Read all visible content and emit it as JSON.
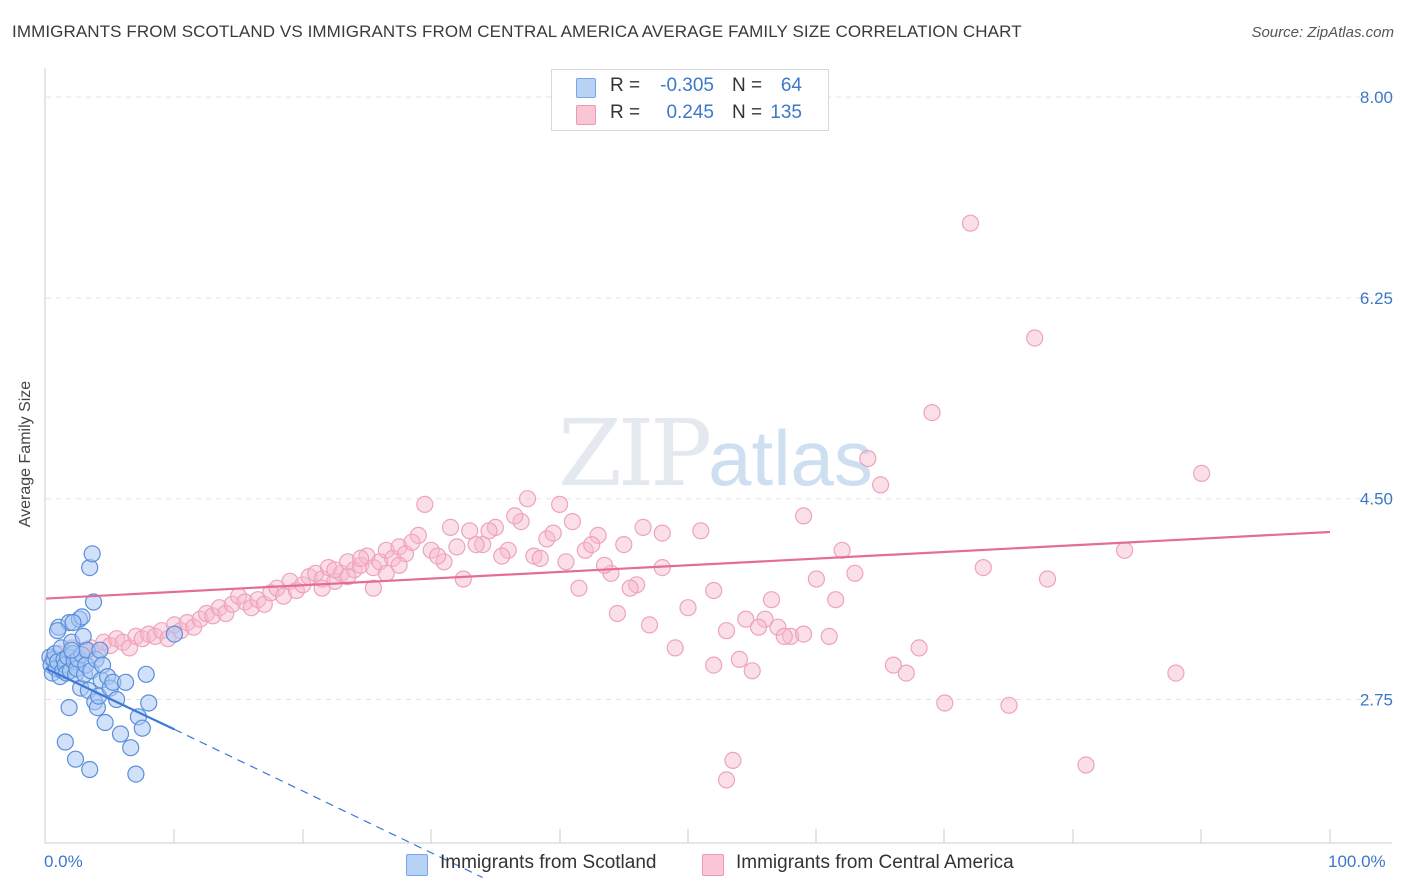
{
  "header": {
    "title": "IMMIGRANTS FROM SCOTLAND VS IMMIGRANTS FROM CENTRAL AMERICA AVERAGE FAMILY SIZE CORRELATION CHART",
    "source": "Source: ZipAtlas.com"
  },
  "watermark": {
    "zip": "ZIP",
    "atlas": "atlas"
  },
  "legend": {
    "rows": [
      {
        "r_label": "R =",
        "r_value": "-0.305",
        "n_label": "N =",
        "n_value": "64",
        "color": "#a9c9f4"
      },
      {
        "r_label": "R =",
        "r_value": "0.245",
        "n_label": "N =",
        "n_value": "135",
        "color": "#f7b9cc"
      }
    ]
  },
  "chart_data": {
    "type": "scatter",
    "title": "IMMIGRANTS FROM SCOTLAND VS IMMIGRANTS FROM CENTRAL AMERICA AVERAGE FAMILY SIZE CORRELATION CHART",
    "xlabel": "",
    "ylabel": "Average Family Size",
    "xlim": [
      0,
      100
    ],
    "ylim": [
      1.5,
      8.2
    ],
    "x_tick_labels": [
      "0.0%",
      "100.0%"
    ],
    "y_ticks": [
      2.75,
      4.5,
      6.25,
      8.0
    ],
    "y_tick_labels": [
      "2.75",
      "4.50",
      "6.25",
      "8.00"
    ],
    "series": [
      {
        "name": "Immigrants from Scotland",
        "color": "#3c78d8",
        "fill": "#a9c9f4",
        "trend": {
          "x0": 0,
          "y0": 3.02,
          "x1": 10,
          "y1": 2.49,
          "dash_to_x": 34,
          "dash_to_y": 1.2
        },
        "points": [
          [
            0.3,
            3.12
          ],
          [
            0.4,
            3.05
          ],
          [
            0.5,
            2.98
          ],
          [
            0.6,
            3.1
          ],
          [
            0.7,
            3.15
          ],
          [
            0.8,
            3.02
          ],
          [
            0.9,
            3.08
          ],
          [
            1.0,
            3.38
          ],
          [
            1.1,
            2.95
          ],
          [
            1.2,
            3.2
          ],
          [
            1.3,
            3.0
          ],
          [
            1.4,
            3.1
          ],
          [
            1.5,
            3.05
          ],
          [
            1.6,
            2.98
          ],
          [
            1.7,
            3.12
          ],
          [
            1.8,
            3.42
          ],
          [
            1.9,
            3.0
          ],
          [
            2.0,
            3.25
          ],
          [
            2.1,
            3.15
          ],
          [
            2.2,
            3.08
          ],
          [
            2.3,
            2.97
          ],
          [
            2.4,
            3.02
          ],
          [
            2.5,
            3.1
          ],
          [
            2.6,
            3.45
          ],
          [
            2.7,
            2.85
          ],
          [
            2.8,
            3.14
          ],
          [
            2.9,
            3.3
          ],
          [
            3.0,
            2.97
          ],
          [
            3.1,
            3.05
          ],
          [
            3.2,
            3.18
          ],
          [
            3.3,
            2.83
          ],
          [
            3.4,
            3.9
          ],
          [
            3.5,
            3.0
          ],
          [
            3.6,
            4.02
          ],
          [
            3.7,
            3.6
          ],
          [
            3.8,
            2.73
          ],
          [
            3.9,
            3.1
          ],
          [
            4.0,
            2.68
          ],
          [
            4.1,
            2.78
          ],
          [
            4.2,
            3.18
          ],
          [
            4.3,
            2.92
          ],
          [
            4.4,
            3.05
          ],
          [
            4.6,
            2.55
          ],
          [
            4.8,
            2.95
          ],
          [
            5.0,
            2.85
          ],
          [
            5.2,
            2.9
          ],
          [
            5.5,
            2.75
          ],
          [
            5.8,
            2.45
          ],
          [
            6.2,
            2.9
          ],
          [
            6.6,
            2.33
          ],
          [
            7.0,
            2.1
          ],
          [
            7.2,
            2.6
          ],
          [
            7.5,
            2.5
          ],
          [
            7.8,
            2.97
          ],
          [
            8.0,
            2.72
          ],
          [
            1.5,
            2.38
          ],
          [
            2.3,
            2.23
          ],
          [
            3.4,
            2.14
          ],
          [
            1.8,
            2.68
          ],
          [
            2.8,
            3.47
          ],
          [
            0.9,
            3.35
          ],
          [
            2.0,
            3.18
          ],
          [
            10.0,
            3.32
          ],
          [
            2.1,
            3.42
          ]
        ]
      },
      {
        "name": "Immigrants from Central America",
        "color": "#e36d97",
        "fill": "#f7b9cc",
        "trend": {
          "x0": 0,
          "y0": 3.63,
          "x1": 100,
          "y1": 4.21
        },
        "points": [
          [
            0.5,
            3.1
          ],
          [
            1.0,
            3.15
          ],
          [
            1.5,
            3.05
          ],
          [
            2.0,
            3.2
          ],
          [
            2.5,
            3.12
          ],
          [
            3.0,
            3.18
          ],
          [
            3.5,
            3.2
          ],
          [
            4.0,
            3.15
          ],
          [
            4.5,
            3.25
          ],
          [
            5.0,
            3.22
          ],
          [
            5.5,
            3.28
          ],
          [
            6.0,
            3.25
          ],
          [
            6.5,
            3.2
          ],
          [
            7.0,
            3.3
          ],
          [
            7.5,
            3.28
          ],
          [
            8.0,
            3.32
          ],
          [
            8.5,
            3.3
          ],
          [
            9.0,
            3.35
          ],
          [
            9.5,
            3.28
          ],
          [
            10.0,
            3.4
          ],
          [
            10.5,
            3.35
          ],
          [
            11.0,
            3.42
          ],
          [
            11.5,
            3.38
          ],
          [
            12.0,
            3.45
          ],
          [
            12.5,
            3.5
          ],
          [
            13.0,
            3.48
          ],
          [
            13.5,
            3.55
          ],
          [
            14.0,
            3.5
          ],
          [
            14.5,
            3.58
          ],
          [
            15.0,
            3.65
          ],
          [
            15.5,
            3.6
          ],
          [
            16.0,
            3.55
          ],
          [
            16.5,
            3.62
          ],
          [
            17.0,
            3.58
          ],
          [
            17.5,
            3.68
          ],
          [
            18.0,
            3.72
          ],
          [
            18.5,
            3.65
          ],
          [
            19.0,
            3.78
          ],
          [
            19.5,
            3.7
          ],
          [
            20.0,
            3.75
          ],
          [
            20.5,
            3.82
          ],
          [
            21.0,
            3.85
          ],
          [
            21.5,
            3.8
          ],
          [
            22.0,
            3.9
          ],
          [
            22.5,
            3.78
          ],
          [
            23.0,
            3.85
          ],
          [
            23.5,
            3.95
          ],
          [
            24.0,
            3.88
          ],
          [
            24.5,
            3.92
          ],
          [
            25.0,
            4.0
          ],
          [
            25.5,
            3.9
          ],
          [
            26.0,
            3.95
          ],
          [
            26.5,
            4.05
          ],
          [
            27.0,
            3.98
          ],
          [
            27.5,
            4.08
          ],
          [
            28.0,
            4.02
          ],
          [
            29.0,
            4.18
          ],
          [
            30.0,
            4.05
          ],
          [
            31.0,
            3.95
          ],
          [
            32.0,
            4.08
          ],
          [
            33.0,
            4.22
          ],
          [
            34.0,
            4.1
          ],
          [
            35.0,
            4.25
          ],
          [
            36.0,
            4.05
          ],
          [
            37.0,
            4.3
          ],
          [
            38.0,
            4.0
          ],
          [
            39.0,
            4.15
          ],
          [
            40.0,
            4.45
          ],
          [
            41.0,
            4.3
          ],
          [
            42.0,
            4.05
          ],
          [
            43.0,
            4.18
          ],
          [
            44.0,
            3.85
          ],
          [
            45.0,
            4.1
          ],
          [
            46.0,
            3.75
          ],
          [
            47.0,
            3.4
          ],
          [
            48.0,
            4.2
          ],
          [
            49.0,
            3.2
          ],
          [
            50.0,
            3.55
          ],
          [
            51.0,
            4.22
          ],
          [
            52.0,
            3.7
          ],
          [
            53.0,
            3.35
          ],
          [
            54.0,
            3.1
          ],
          [
            55.0,
            3.0
          ],
          [
            56.0,
            3.45
          ],
          [
            57.0,
            3.38
          ],
          [
            58.0,
            3.3
          ],
          [
            59.0,
            4.35
          ],
          [
            60.0,
            3.8
          ],
          [
            61.0,
            3.3
          ],
          [
            62.0,
            4.05
          ],
          [
            63.0,
            3.85
          ],
          [
            64.0,
            4.85
          ],
          [
            65.0,
            4.62
          ],
          [
            66.0,
            3.05
          ],
          [
            67.0,
            2.98
          ],
          [
            68.0,
            3.2
          ],
          [
            69.0,
            5.25
          ],
          [
            70.0,
            2.72
          ],
          [
            72.0,
            6.9
          ],
          [
            73.0,
            3.9
          ],
          [
            75.0,
            2.7
          ],
          [
            77.0,
            5.9
          ],
          [
            78.0,
            3.8
          ],
          [
            81.0,
            2.18
          ],
          [
            84.0,
            4.05
          ],
          [
            88.0,
            2.98
          ],
          [
            90.0,
            4.72
          ],
          [
            53.5,
            2.22
          ],
          [
            54.5,
            3.45
          ],
          [
            55.5,
            3.38
          ],
          [
            56.5,
            3.62
          ],
          [
            57.5,
            3.3
          ],
          [
            52.0,
            3.05
          ],
          [
            48.0,
            3.9
          ],
          [
            46.5,
            4.25
          ],
          [
            45.5,
            3.72
          ],
          [
            44.5,
            3.5
          ],
          [
            43.5,
            3.92
          ],
          [
            42.5,
            4.1
          ],
          [
            41.5,
            3.72
          ],
          [
            40.5,
            3.95
          ],
          [
            39.5,
            4.2
          ],
          [
            38.5,
            3.98
          ],
          [
            37.5,
            4.5
          ],
          [
            36.5,
            4.35
          ],
          [
            35.5,
            4.0
          ],
          [
            34.5,
            4.22
          ],
          [
            33.5,
            4.1
          ],
          [
            32.5,
            3.8
          ],
          [
            31.5,
            4.25
          ],
          [
            30.5,
            4.0
          ],
          [
            29.5,
            4.45
          ],
          [
            28.5,
            4.12
          ],
          [
            27.5,
            3.92
          ],
          [
            26.5,
            3.85
          ],
          [
            25.5,
            3.72
          ],
          [
            24.5,
            3.98
          ],
          [
            23.5,
            3.82
          ],
          [
            22.5,
            3.88
          ],
          [
            21.5,
            3.72
          ],
          [
            53.0,
            2.05
          ],
          [
            61.5,
            3.62
          ],
          [
            59.0,
            3.32
          ]
        ]
      }
    ]
  }
}
